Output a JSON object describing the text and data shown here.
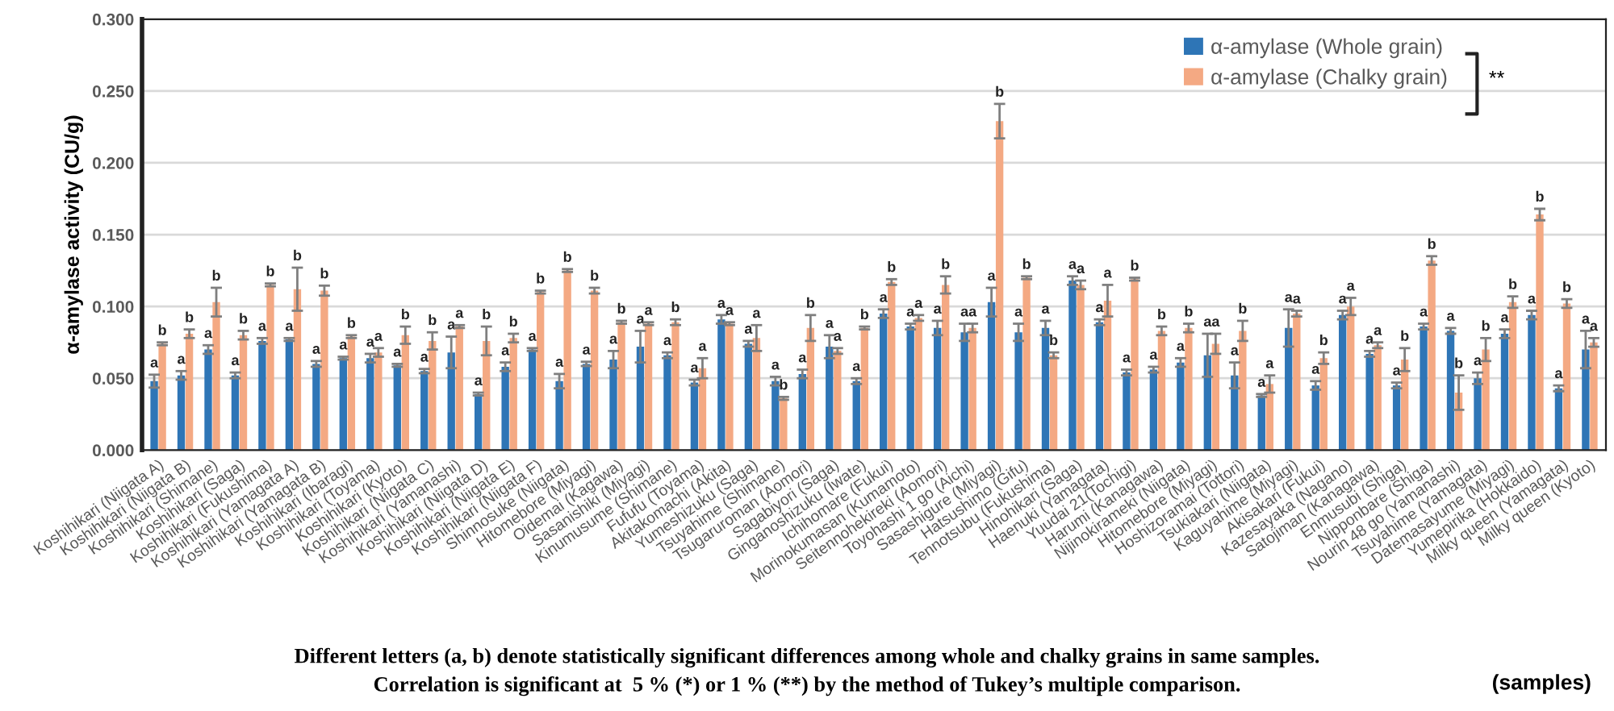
{
  "chart_data": {
    "type": "bar",
    "ylabel": "α-amylase activity (CU/g)",
    "xlabel": "(samples)",
    "categories": [
      "Koshihikari (Niigata A)",
      "Koshihikari (Niigata B)",
      "Koshihikari (Shimane)",
      "Koshihikari (Saga)",
      "Koshihikari (Fukushima)",
      "Koshihikari (Yamagata A)",
      "Koshihikari (Yamagata B)",
      "Koshihikari (Ibaragi)",
      "Koshihikari (Toyama)",
      "Koshihikari (Kyoto)",
      "Koshihikari (Niigata C)",
      "Koshihikari (Yamanashi)",
      "Koshihikari (Niigata D)",
      "Koshihikari (Niigata E)",
      "Koshihikari (Niigata F)",
      "Shinnosuke (Niigata)",
      "Hitomebore (Miyagi)",
      "Oidemai (Kagawa)",
      "Sasanishiki (Miyagi)",
      "Kinumusume (Shimane)",
      "Fufufu (Toyama)",
      "Akitakomachi (Akita)",
      "Yumeshizuku (Saga)",
      "Tsuyahime (Shimane)",
      "Tsugaruroman (Aomori)",
      "Sagabiyori (Saga)",
      "Ginganoshizuku (Iwate)",
      "Ichihomare (Fukui)",
      "Morinokumasan (Kumamoto)",
      "Seitennohekireki (Aomori)",
      "Toyohashi 1 go (Aichi)",
      "Sasashigure (Miyagi)",
      "Hatsushimo (Gifu)",
      "Tennotsubu (Fukushima)",
      "Hinohikari (Saga)",
      "Haenuki (Yamagata)",
      "Yuudai 21(Tochigi)",
      "Harumi (Kanagawa)",
      "Nijinokirameki (Niigata)",
      "Hitomebore (Miyagi)",
      "Hoshizoramai (Tottori)",
      "Tsukiakari (Niigata)",
      "Kaguyahime (Miyagi)",
      "Akisakari (Fukui)",
      "Kazesayaka (Nagano)",
      "Satojiman (Kanagawa)",
      "Enmusubi (Shiga)",
      "Nipponbare (Shiga)",
      "Nourin 48 go (Yamanashi)",
      "Tsuyahime (Yamagata)",
      "Datemasayume (Miyagi)",
      "Yumepirika (Hokkaido)",
      "Milky queen (Yamagata)",
      "Milky queen (Kyoto)"
    ],
    "series": [
      {
        "name": "α-amylase (Whole grain)",
        "color": "#2e75b6",
        "values": [
          0.048,
          0.052,
          0.07,
          0.052,
          0.076,
          0.077,
          0.06,
          0.064,
          0.064,
          0.059,
          0.055,
          0.068,
          0.039,
          0.058,
          0.07,
          0.048,
          0.06,
          0.063,
          0.072,
          0.066,
          0.047,
          0.091,
          0.074,
          0.048,
          0.053,
          0.072,
          0.048,
          0.095,
          0.086,
          0.085,
          0.082,
          0.103,
          0.082,
          0.085,
          0.118,
          0.089,
          0.054,
          0.056,
          0.061,
          0.066,
          0.052,
          0.038,
          0.085,
          0.045,
          0.094,
          0.067,
          0.045,
          0.086,
          0.083,
          0.05,
          0.081,
          0.094,
          0.043,
          0.07
        ],
        "errors": [
          0.0045,
          0.003,
          0.003,
          0.002,
          0.002,
          0.001,
          0.002,
          0.001,
          0.003,
          0.001,
          0.0015,
          0.011,
          0.001,
          0.003,
          0.001,
          0.005,
          0.0015,
          0.006,
          0.011,
          0.002,
          0.002,
          0.003,
          0.002,
          0.003,
          0.003,
          0.008,
          0.002,
          0.003,
          0.002,
          0.005,
          0.006,
          0.01,
          0.006,
          0.005,
          0.003,
          0.002,
          0.002,
          0.002,
          0.003,
          0.015,
          0.009,
          0.001,
          0.013,
          0.003,
          0.003,
          0.002,
          0.002,
          0.002,
          0.002,
          0.004,
          0.003,
          0.003,
          0.002,
          0.013
        ],
        "value_labels": [
          "a",
          "a",
          "a",
          "a",
          "a",
          "a",
          "a",
          "a",
          "a",
          "a",
          "a",
          "a",
          "a",
          "a",
          "a",
          "a",
          "a",
          "a",
          "a",
          "a",
          "a",
          "a",
          "a",
          "a",
          "a",
          "a",
          "a",
          "a",
          "a",
          "a",
          "a",
          "a",
          "a",
          "a",
          "a",
          "a",
          "a",
          "a",
          "a",
          "a",
          "a",
          "a",
          "a",
          "a",
          "a",
          "a",
          "a",
          "a",
          "a",
          "a",
          "a",
          "a",
          "a",
          "a"
        ]
      },
      {
        "name": "α-amylase (Chalky grain)",
        "color": "#f4a983",
        "values": [
          0.074,
          0.081,
          0.103,
          0.08,
          0.115,
          0.112,
          0.111,
          0.079,
          0.068,
          0.08,
          0.076,
          0.086,
          0.076,
          0.078,
          0.11,
          0.125,
          0.111,
          0.089,
          0.088,
          0.089,
          0.057,
          0.088,
          0.078,
          0.036,
          0.085,
          0.069,
          0.085,
          0.117,
          0.092,
          0.115,
          0.085,
          0.229,
          0.12,
          0.066,
          0.115,
          0.104,
          0.119,
          0.083,
          0.085,
          0.074,
          0.083,
          0.046,
          0.095,
          0.064,
          0.1,
          0.073,
          0.063,
          0.132,
          0.04,
          0.07,
          0.103,
          0.164,
          0.102,
          0.075
        ],
        "errors": [
          0.001,
          0.003,
          0.01,
          0.003,
          0.001,
          0.015,
          0.0035,
          0.001,
          0.003,
          0.006,
          0.006,
          0.001,
          0.01,
          0.003,
          0.001,
          0.001,
          0.002,
          0.001,
          0.001,
          0.002,
          0.007,
          0.001,
          0.009,
          0.001,
          0.009,
          0.002,
          0.001,
          0.002,
          0.002,
          0.006,
          0.003,
          0.012,
          0.001,
          0.002,
          0.003,
          0.011,
          0.001,
          0.003,
          0.003,
          0.007,
          0.007,
          0.006,
          0.002,
          0.004,
          0.006,
          0.002,
          0.008,
          0.003,
          0.012,
          0.008,
          0.004,
          0.004,
          0.003,
          0.003
        ],
        "value_labels": [
          "b",
          "b",
          "b",
          "b",
          "b",
          "b",
          "b",
          "b",
          "a",
          "b",
          "b",
          "a",
          "b",
          "b",
          "b",
          "b",
          "b",
          "b",
          "a",
          "b",
          "a",
          "a",
          "a",
          "b",
          "b",
          "a",
          "b",
          "b",
          "a",
          "b",
          "a",
          "b",
          "b",
          "b",
          "a",
          "a",
          "b",
          "b",
          "b",
          "a",
          "b",
          "a",
          "a",
          "b",
          "a",
          "a",
          "b",
          "b",
          "b",
          "b",
          "b",
          "b",
          "b",
          "a"
        ]
      }
    ],
    "ylim": [
      0,
      0.3
    ],
    "yticks": [
      {
        "value": 0,
        "label": "0.000"
      },
      {
        "value": 0.05,
        "label": "0.050"
      },
      {
        "value": 0.1,
        "label": "0.100"
      },
      {
        "value": 0.15,
        "label": "0.150"
      },
      {
        "value": 0.2,
        "label": "0.200"
      },
      {
        "value": 0.25,
        "label": "0.250"
      },
      {
        "value": 0.3,
        "label": "0.300"
      }
    ],
    "grid": "y",
    "legend": "top right",
    "annotations": [
      "**",
      "Different letters (a, b) denote statistically significant differences among whole and chalky grains in same samples.",
      "Correlation is significant at  5 % (*) or 1 % (**) by the method of Tukey’s multiple comparison."
    ]
  }
}
